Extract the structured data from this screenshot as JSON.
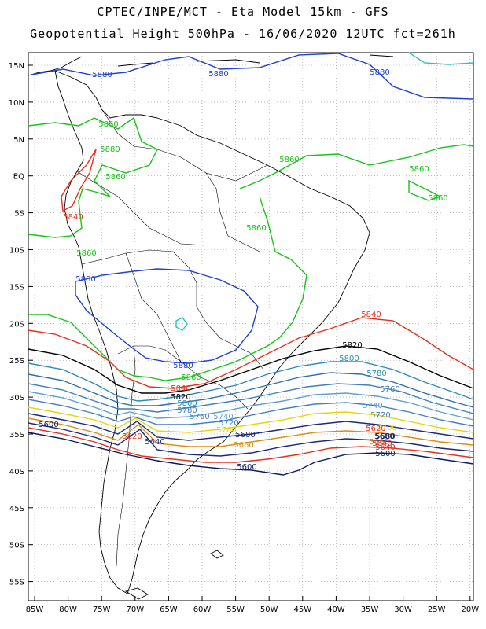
{
  "header": {
    "line1": "CPTEC/INPE/MCT -  Eta Model 15km - GFS",
    "line2": "Geopotential Height 500hPa - 16/06/2020 12UTC fct=261h"
  },
  "axes": {
    "lat_ticks": [
      "15N",
      "10N",
      "5N",
      "EQ",
      "5S",
      "10S",
      "15S",
      "20S",
      "25S",
      "30S",
      "35S",
      "40S",
      "45S",
      "50S",
      "55S"
    ],
    "lon_ticks": [
      "85W",
      "80W",
      "75W",
      "70W",
      "65W",
      "60W",
      "55W",
      "50W",
      "45W",
      "40W",
      "35W",
      "30W",
      "25W",
      "20W"
    ]
  },
  "contour_labels": [
    {
      "text": "5880",
      "color": "#1f3fd6"
    },
    {
      "text": "5880",
      "color": "#1f3fd6"
    },
    {
      "text": "5880",
      "color": "#1f3fd6"
    },
    {
      "text": "5860",
      "color": "#18c418"
    },
    {
      "text": "5880",
      "color": "#18c418"
    },
    {
      "text": "5860",
      "color": "#18c418"
    },
    {
      "text": "5860",
      "color": "#18c418"
    },
    {
      "text": "5860",
      "color": "#18c418"
    },
    {
      "text": "5860",
      "color": "#18c418"
    },
    {
      "text": "5860",
      "color": "#18c418"
    },
    {
      "text": "5860",
      "color": "#18c418"
    },
    {
      "text": "5840",
      "color": "#e8301e"
    },
    {
      "text": "5880",
      "color": "#1f3fd6"
    },
    {
      "text": "5860",
      "color": "#18c418"
    },
    {
      "text": "5880",
      "color": "#1f3fd6"
    },
    {
      "text": "5840",
      "color": "#e8301e"
    },
    {
      "text": "5840",
      "color": "#e8301e"
    },
    {
      "text": "5820",
      "color": "#000000"
    },
    {
      "text": "5820",
      "color": "#000000"
    },
    {
      "text": "5800",
      "color": "#2c8ab8"
    },
    {
      "text": "5780",
      "color": "#2c8ab8"
    },
    {
      "text": "5760",
      "color": "#3f7fc0"
    },
    {
      "text": "5740",
      "color": "#5fa0cc"
    },
    {
      "text": "5720",
      "color": "#3f7fc0"
    },
    {
      "text": "5700",
      "color": "#e6d60a"
    },
    {
      "text": "5680",
      "color": "#1a2a7a"
    },
    {
      "text": "5660",
      "color": "#e08a10"
    },
    {
      "text": "5640",
      "color": "#e8301e"
    },
    {
      "text": "5600",
      "color": "#0a1a60"
    },
    {
      "text": "5800",
      "color": "#2c8ab8"
    },
    {
      "text": "5780",
      "color": "#3f7fc0"
    },
    {
      "text": "5760",
      "color": "#3f7fc0"
    },
    {
      "text": "5740",
      "color": "#5fa0cc"
    },
    {
      "text": "5720",
      "color": "#3f7fc0"
    },
    {
      "text": "5700",
      "color": "#e6d60a"
    },
    {
      "text": "5680",
      "color": "#1a2a7a"
    },
    {
      "text": "5660",
      "color": "#e08a10"
    },
    {
      "text": "5640",
      "color": "#1a2a7a"
    },
    {
      "text": "5620",
      "color": "#e8301e"
    },
    {
      "text": "5600",
      "color": "#0a1a60"
    },
    {
      "text": "5600",
      "color": "#0a1a60"
    },
    {
      "text": "5640",
      "color": "#e8301e"
    },
    {
      "text": "5620",
      "color": "#e8301e"
    },
    {
      "text": "5600",
      "color": "#0a1a60"
    }
  ]
}
